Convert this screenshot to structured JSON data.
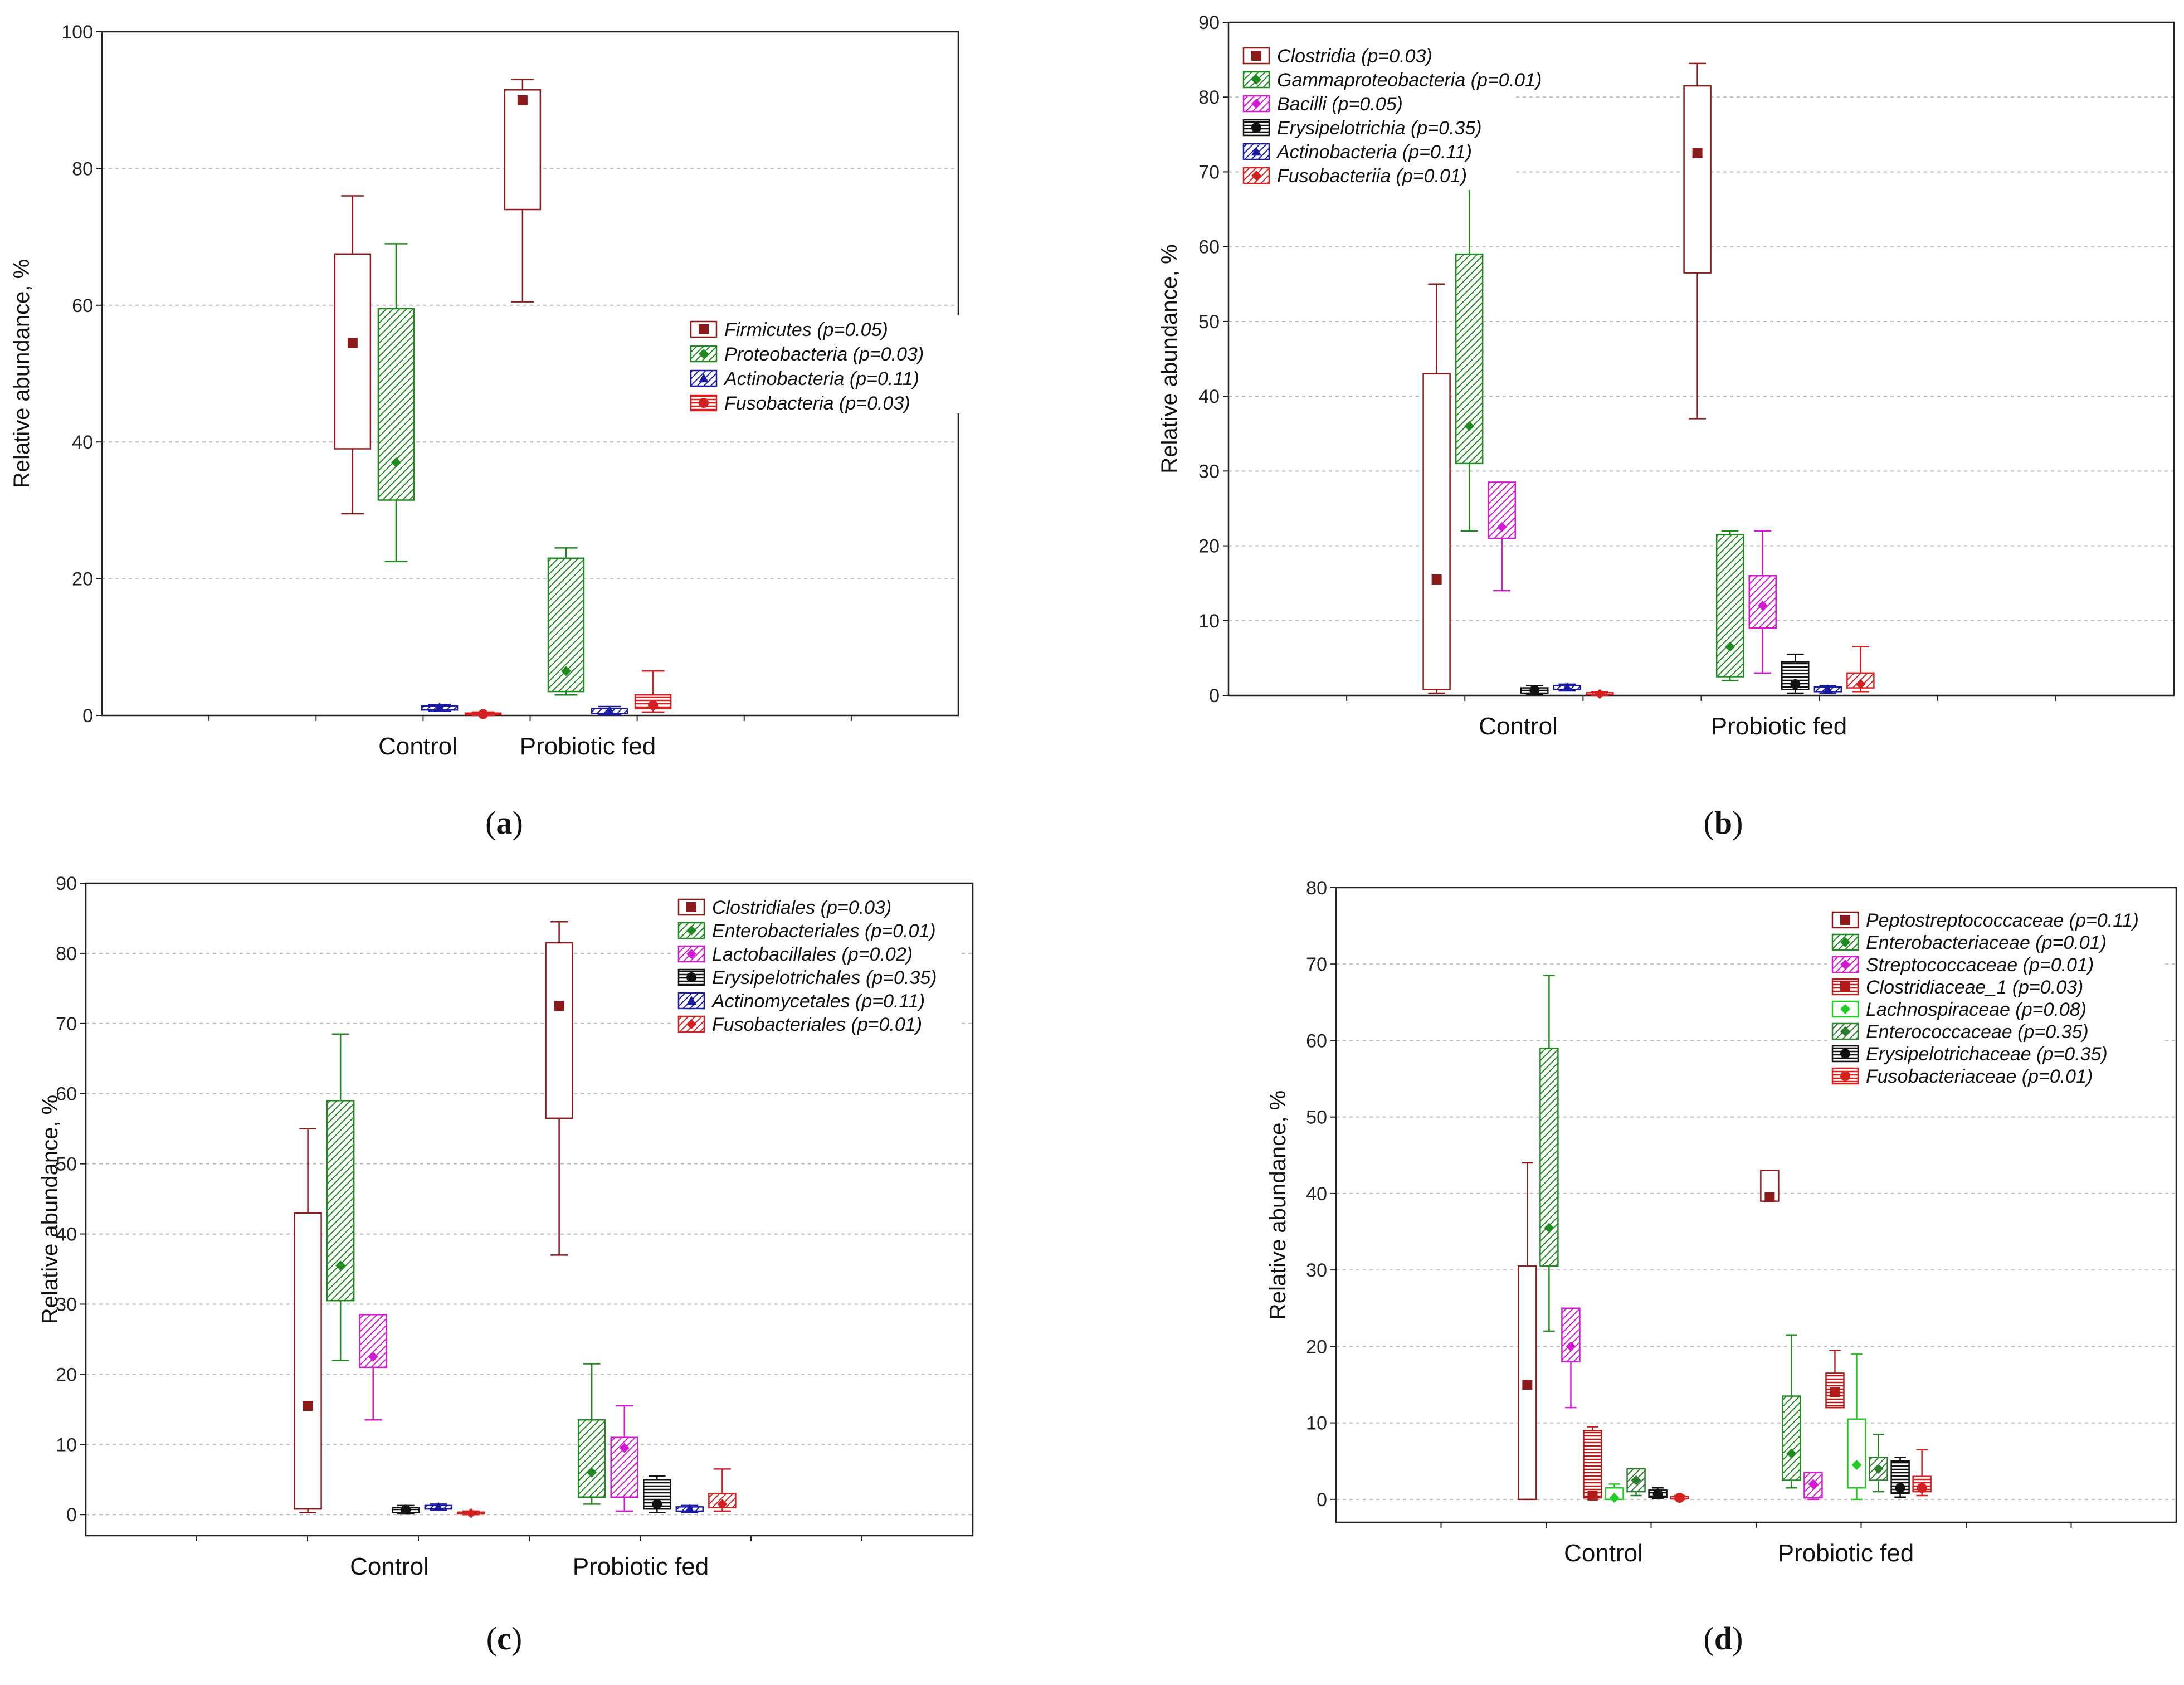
{
  "chart_data": [
    {
      "type": "box",
      "panel_label": "a",
      "ylabel": "Relative abundance, %",
      "ylim": [
        0,
        100
      ],
      "yticks": [
        0,
        20,
        40,
        60,
        80,
        100
      ],
      "categories": [
        "Control",
        "Probiotic fed"
      ],
      "legend_position": "center-right",
      "series": [
        {
          "name": "Firmicutes (p=0.05)",
          "color": "#8b1a1a",
          "hatch": "none",
          "marker": "square",
          "stats": [
            {
              "min": 29.5,
              "q1": 39,
              "median": 54.5,
              "q3": 67.5,
              "max": 76
            },
            {
              "min": 60.5,
              "q1": 74,
              "median": 90,
              "q3": 91.5,
              "max": 93
            }
          ]
        },
        {
          "name": "Proteobacteria (p=0.03)",
          "color": "#1f8a1f",
          "hatch": "diag",
          "marker": "diamond",
          "stats": [
            {
              "min": 22.5,
              "q1": 31.5,
              "median": 37,
              "q3": 59.5,
              "max": 69
            },
            {
              "min": 3,
              "q1": 3.5,
              "median": 6.5,
              "q3": 23,
              "max": 24.5
            }
          ]
        },
        {
          "name": "Actinobacteria (p=0.11)",
          "color": "#1a1aa0",
          "hatch": "diag",
          "marker": "triangle",
          "stats": [
            {
              "min": 0.6,
              "q1": 0.8,
              "median": 1.2,
              "q3": 1.4,
              "max": 1.6
            },
            {
              "min": 0.1,
              "q1": 0.3,
              "median": 0.7,
              "q3": 1,
              "max": 1.3
            }
          ]
        },
        {
          "name": "Fusobacteria (p=0.03)",
          "color": "#d42020",
          "hatch": "horiz",
          "marker": "circle",
          "stats": [
            {
              "min": 0,
              "q1": 0.1,
              "median": 0.2,
              "q3": 0.35,
              "max": 0.5
            },
            {
              "min": 0.5,
              "q1": 1,
              "median": 1.5,
              "q3": 3,
              "max": 6.5
            }
          ]
        }
      ]
    },
    {
      "type": "box",
      "panel_label": "b",
      "ylabel": "Relative abundance, %",
      "ylim": [
        0,
        90
      ],
      "yticks": [
        0,
        10,
        20,
        30,
        40,
        50,
        60,
        70,
        80,
        90
      ],
      "categories": [
        "Control",
        "Probiotic fed"
      ],
      "legend_position": "top-left",
      "series": [
        {
          "name": "Clostridia (p=0.03)",
          "color": "#8b1a1a",
          "hatch": "none",
          "marker": "square",
          "stats": [
            {
              "min": 0.3,
              "q1": 0.8,
              "median": 15.5,
              "q3": 43,
              "max": 55
            },
            {
              "min": 37,
              "q1": 56.5,
              "median": 72.5,
              "q3": 81.5,
              "max": 84.5
            }
          ]
        },
        {
          "name": "Gammaproteobacteria (p=0.01)",
          "color": "#1f8a1f",
          "hatch": "diag",
          "marker": "diamond",
          "stats": [
            {
              "min": 22,
              "q1": 31,
              "median": 36,
              "q3": 59,
              "max": 68
            },
            {
              "min": 2,
              "q1": 2.5,
              "median": 6.5,
              "q3": 21.5,
              "max": 22
            }
          ]
        },
        {
          "name": "Bacilli (p=0.05)",
          "color": "#d11ad1",
          "hatch": "diag",
          "marker": "diamond",
          "stats": [
            {
              "min": 14,
              "q1": 21,
              "median": 22.5,
              "q3": 28.5,
              "max": 28.5
            },
            {
              "min": 3,
              "q1": 9,
              "median": 12,
              "q3": 16,
              "max": 22
            }
          ]
        },
        {
          "name": "Erysipelotrichia (p=0.35)",
          "color": "#111111",
          "hatch": "horiz",
          "marker": "circle",
          "stats": [
            {
              "min": 0.1,
              "q1": 0.3,
              "median": 0.7,
              "q3": 1,
              "max": 1.3
            },
            {
              "min": 0.3,
              "q1": 0.8,
              "median": 1.5,
              "q3": 4.5,
              "max": 5.5
            }
          ]
        },
        {
          "name": "Actinobacteria (p=0.11)",
          "color": "#1a1aa0",
          "hatch": "diag",
          "marker": "triangle",
          "stats": [
            {
              "min": 0.6,
              "q1": 0.8,
              "median": 1.1,
              "q3": 1.3,
              "max": 1.5
            },
            {
              "min": 0.3,
              "q1": 0.5,
              "median": 0.8,
              "q3": 1.1,
              "max": 1.3
            }
          ]
        },
        {
          "name": "Fusobacteriia (p=0.01)",
          "color": "#d42020",
          "hatch": "diag",
          "marker": "diamond",
          "stats": [
            {
              "min": 0,
              "q1": 0.1,
              "median": 0.2,
              "q3": 0.35,
              "max": 0.5
            },
            {
              "min": 0.5,
              "q1": 1,
              "median": 1.5,
              "q3": 3,
              "max": 6.5
            }
          ]
        }
      ]
    },
    {
      "type": "box",
      "panel_label": "c",
      "ylabel": "Relative abundance, %",
      "ylim": [
        -3,
        90
      ],
      "yticks": [
        0,
        10,
        20,
        30,
        40,
        50,
        60,
        70,
        80,
        90
      ],
      "categories": [
        "Control",
        "Probiotic fed"
      ],
      "legend_position": "top-right",
      "series": [
        {
          "name": "Clostridiales (p=0.03)",
          "color": "#8b1a1a",
          "hatch": "none",
          "marker": "square",
          "stats": [
            {
              "min": 0.3,
              "q1": 0.8,
              "median": 15.5,
              "q3": 43,
              "max": 55
            },
            {
              "min": 37,
              "q1": 56.5,
              "median": 72.5,
              "q3": 81.5,
              "max": 84.5
            }
          ]
        },
        {
          "name": "Enterobacteriales (p=0.01)",
          "color": "#1f8a1f",
          "hatch": "diag",
          "marker": "diamond",
          "stats": [
            {
              "min": 22,
              "q1": 30.5,
              "median": 35.5,
              "q3": 59,
              "max": 68.5
            },
            {
              "min": 1.5,
              "q1": 2.5,
              "median": 6,
              "q3": 13.5,
              "max": 21.5
            }
          ]
        },
        {
          "name": "Lactobacillales (p=0.02)",
          "color": "#d11ad1",
          "hatch": "diag",
          "marker": "diamond",
          "stats": [
            {
              "min": 13.5,
              "q1": 21,
              "median": 22.5,
              "q3": 28.5,
              "max": 28.5
            },
            {
              "min": 0.5,
              "q1": 2.5,
              "median": 9.5,
              "q3": 11,
              "max": 15.5
            }
          ]
        },
        {
          "name": "Erysipelotrichales (p=0.35)",
          "color": "#111111",
          "hatch": "horiz",
          "marker": "circle",
          "stats": [
            {
              "min": 0.1,
              "q1": 0.3,
              "median": 0.7,
              "q3": 1,
              "max": 1.3
            },
            {
              "min": 0.3,
              "q1": 0.8,
              "median": 1.5,
              "q3": 5,
              "max": 5.5
            }
          ]
        },
        {
          "name": "Actinomycetales (p=0.11)",
          "color": "#1a1aa0",
          "hatch": "diag",
          "marker": "triangle",
          "stats": [
            {
              "min": 0.6,
              "q1": 0.8,
              "median": 1.1,
              "q3": 1.3,
              "max": 1.5
            },
            {
              "min": 0.3,
              "q1": 0.5,
              "median": 0.8,
              "q3": 1.1,
              "max": 1.3
            }
          ]
        },
        {
          "name": "Fusobacteriales (p=0.01)",
          "color": "#d42020",
          "hatch": "diag",
          "marker": "diamond",
          "stats": [
            {
              "min": 0,
              "q1": 0.1,
              "median": 0.2,
              "q3": 0.35,
              "max": 0.5
            },
            {
              "min": 0.5,
              "q1": 1,
              "median": 1.5,
              "q3": 3,
              "max": 6.5
            }
          ]
        }
      ]
    },
    {
      "type": "box",
      "panel_label": "d",
      "ylabel": "Relative abundance, %",
      "ylim": [
        -3,
        80
      ],
      "yticks": [
        0,
        10,
        20,
        30,
        40,
        50,
        60,
        70,
        80
      ],
      "categories": [
        "Control",
        "Probiotic fed"
      ],
      "legend_position": "top-right",
      "series": [
        {
          "name": "Peptostreptococcaceae (p=0.11)",
          "color": "#8b1a1a",
          "hatch": "none",
          "marker": "square",
          "stats": [
            {
              "min": 0,
              "q1": 0,
              "median": 15,
              "q3": 30.5,
              "max": 44
            },
            {
              "min": 39,
              "q1": 39,
              "median": 39.5,
              "q3": 43,
              "max": 43
            }
          ]
        },
        {
          "name": "Enterobacteriaceae (p=0.01)",
          "color": "#1f8a1f",
          "hatch": "diag",
          "marker": "diamond",
          "stats": [
            {
              "min": 22,
              "q1": 30.5,
              "median": 35.5,
              "q3": 59,
              "max": 68.5
            },
            {
              "min": 1.5,
              "q1": 2.5,
              "median": 6,
              "q3": 13.5,
              "max": 21.5
            }
          ]
        },
        {
          "name": "Streptococcaceae (p=0.01)",
          "color": "#d11ad1",
          "hatch": "diag",
          "marker": "diamond",
          "stats": [
            {
              "min": 12,
              "q1": 18,
              "median": 20,
              "q3": 25,
              "max": 25
            },
            {
              "min": 0,
              "q1": 0.2,
              "median": 2,
              "q3": 3.5,
              "max": 3.5
            }
          ]
        },
        {
          "name": "Clostridiaceae_1 (p=0.03)",
          "color": "#b31a1a",
          "hatch": "horiz",
          "marker": "square",
          "stats": [
            {
              "min": 0,
              "q1": 0.2,
              "median": 0.5,
              "q3": 9,
              "max": 9.5
            },
            {
              "min": 12,
              "q1": 12,
              "median": 14,
              "q3": 16.5,
              "max": 19.5
            }
          ]
        },
        {
          "name": "Lachnospiraceae (p=0.08)",
          "color": "#22cc22",
          "hatch": "none",
          "marker": "diamond",
          "stats": [
            {
              "min": 0,
              "q1": 0,
              "median": 0.2,
              "q3": 1.5,
              "max": 2
            },
            {
              "min": 0,
              "q1": 1.5,
              "median": 4.5,
              "q3": 10.5,
              "max": 19
            }
          ]
        },
        {
          "name": "Enterococcaceae (p=0.35)",
          "color": "#2e7d2e",
          "hatch": "diag",
          "marker": "diamond",
          "stats": [
            {
              "min": 0.5,
              "q1": 1,
              "median": 2.5,
              "q3": 4,
              "max": 4
            },
            {
              "min": 1,
              "q1": 2.5,
              "median": 4,
              "q3": 5.5,
              "max": 8.5
            }
          ]
        },
        {
          "name": "Erysipelotrichaceae (p=0.35)",
          "color": "#111111",
          "hatch": "horiz",
          "marker": "circle",
          "stats": [
            {
              "min": 0.1,
              "q1": 0.3,
              "median": 0.7,
              "q3": 1.2,
              "max": 1.5
            },
            {
              "min": 0.3,
              "q1": 0.8,
              "median": 1.5,
              "q3": 5,
              "max": 5.5
            }
          ]
        },
        {
          "name": "Fusobacteriaceae (p=0.01)",
          "color": "#d42020",
          "hatch": "horiz",
          "marker": "circle",
          "stats": [
            {
              "min": 0,
              "q1": 0.1,
              "median": 0.2,
              "q3": 0.35,
              "max": 0.5
            },
            {
              "min": 0.5,
              "q1": 1,
              "median": 1.5,
              "q3": 3,
              "max": 6.5
            }
          ]
        }
      ]
    }
  ]
}
